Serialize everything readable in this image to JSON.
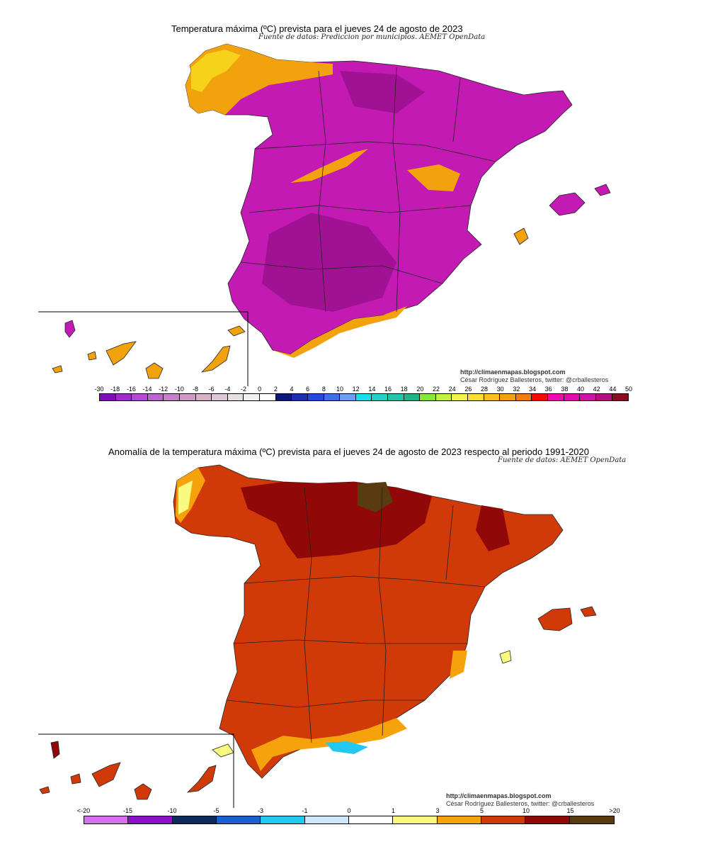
{
  "top_map": {
    "title": "Temperatura máxima (ºC) prevista para el jueves 24 de agosto de 2023",
    "source": "Fuente de datos: Prediccion por municipios. AEMET OpenData",
    "credit_url": "http://climaenmapas.blogspot.com",
    "credit_author": "César Rodríguez Ballesteros, twitter: @crballesteros",
    "legend_labels": [
      "-30",
      "-18",
      "-16",
      "-14",
      "-12",
      "-10",
      "-8",
      "-6",
      "-4",
      "-2",
      "0",
      "2",
      "4",
      "6",
      "8",
      "10",
      "12",
      "14",
      "16",
      "18",
      "20",
      "22",
      "24",
      "26",
      "28",
      "30",
      "32",
      "34",
      "36",
      "38",
      "40",
      "42",
      "44",
      "50"
    ],
    "legend_colors": [
      "#7a10b8",
      "#9b2fc8",
      "#ad4fd0",
      "#bb66cc",
      "#c77fc8",
      "#d098c7",
      "#d6b2c9",
      "#dcc7d4",
      "#e6e0e6",
      "#f2f2f2",
      "#ffffff",
      "#0d1a7a",
      "#1c2fb0",
      "#2448e0",
      "#3f6fe6",
      "#6d9ef0",
      "#18e0e8",
      "#1fd1c8",
      "#22c4aa",
      "#22b488",
      "#86e83a",
      "#c2f23a",
      "#f2f24a",
      "#f9e02e",
      "#f6c21a",
      "#f2a20c",
      "#f27d0c",
      "#f20c0c",
      "#f00ca8",
      "#e40ea6",
      "#cc149c",
      "#b01080",
      "#8a1020"
    ],
    "map_color_main": "#c21ab2",
    "map_color_hot": "#a01293",
    "map_color_mild": "#f2a20c",
    "map_color_cool": "#f6d21a"
  },
  "bottom_map": {
    "title": "Anomalía de la temperatura máxima (ºC) prevista para el jueves 24 de agosto de 2023 respecto al periodo 1991-2020",
    "source": "Fuente de datos: AEMET OpenData",
    "credit_url": "http://climaenmapas.blogspot.com",
    "credit_author": "César Rodríguez Ballesteros, twitter: @crballesteros",
    "legend_labels": [
      "<-20",
      "-15",
      "-10",
      "-5",
      "-3",
      "-1",
      "0",
      "1",
      "3",
      "5",
      "10",
      "15",
      ">20"
    ],
    "legend_colors": [
      "#d670f0",
      "#8c10c8",
      "#0d2a5a",
      "#1c5fd0",
      "#22c8f0",
      "#cfe6f8",
      "#ffffff",
      "#fafa80",
      "#f5a20c",
      "#d03a08",
      "#900808",
      "#5a3a10"
    ],
    "map_color_main": "#d03a08",
    "map_color_hot": "#900808",
    "map_color_mild": "#f5a20c",
    "map_color_cool": "#fafa80"
  }
}
